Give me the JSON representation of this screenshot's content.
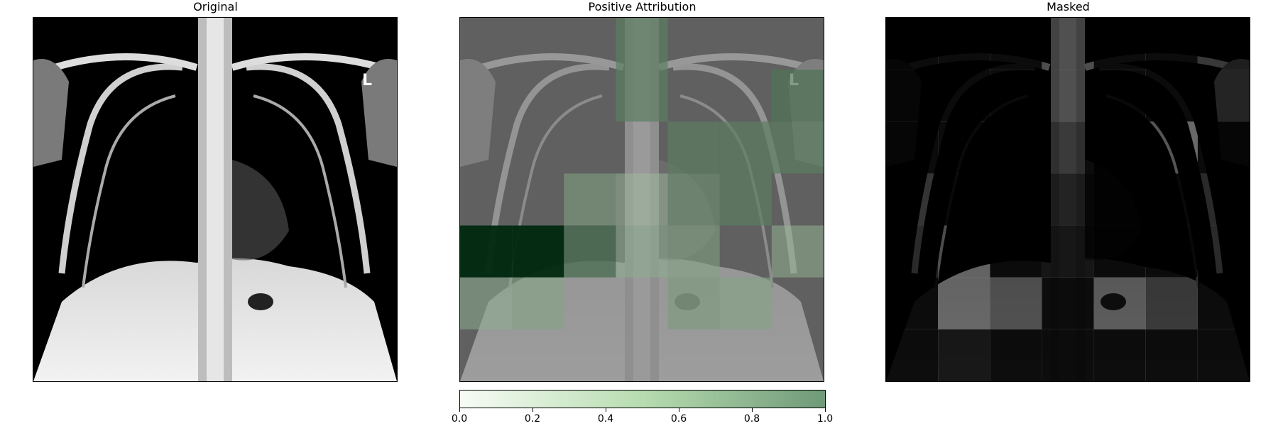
{
  "panels": {
    "original": {
      "title": "Original"
    },
    "attribution": {
      "title": "Positive Attribution"
    },
    "masked": {
      "title": "Masked"
    }
  },
  "image_marker": "L",
  "colorbar": {
    "ticks": [
      "0.0",
      "0.2",
      "0.4",
      "0.6",
      "0.8",
      "1.0"
    ],
    "min_color": "#f7fcf5",
    "max_color": "#6f9a78"
  },
  "attribution_grid": [
    [
      0.0,
      0.0,
      0.0,
      0.55,
      0.0,
      0.0,
      0.0
    ],
    [
      0.0,
      0.0,
      0.0,
      0.55,
      0.0,
      0.0,
      0.6
    ],
    [
      0.0,
      0.0,
      0.0,
      0.0,
      0.55,
      0.55,
      0.55
    ],
    [
      0.0,
      0.0,
      0.35,
      0.2,
      0.45,
      0.55,
      0.0
    ],
    [
      1.0,
      1.0,
      0.65,
      0.3,
      0.35,
      0.0,
      0.25
    ],
    [
      0.3,
      0.35,
      0.0,
      0.0,
      0.4,
      0.35,
      0.0
    ],
    [
      0.0,
      0.0,
      0.0,
      0.0,
      0.0,
      0.0,
      0.0
    ]
  ],
  "masked_grid": [
    [
      0.05,
      0.05,
      0.05,
      0.35,
      0.05,
      0.05,
      0.25
    ],
    [
      0.05,
      0.05,
      0.05,
      0.35,
      0.05,
      0.05,
      0.3
    ],
    [
      0.05,
      0.05,
      0.05,
      0.25,
      0.05,
      0.5,
      0.05
    ],
    [
      0.25,
      0.05,
      0.05,
      0.15,
      0.05,
      0.05,
      0.2
    ],
    [
      0.2,
      0.45,
      0.05,
      0.1,
      0.05,
      0.05,
      0.2
    ],
    [
      0.05,
      0.45,
      0.35,
      0.05,
      0.4,
      0.25,
      0.05
    ],
    [
      0.05,
      0.1,
      0.05,
      0.05,
      0.05,
      0.05,
      0.05
    ]
  ]
}
